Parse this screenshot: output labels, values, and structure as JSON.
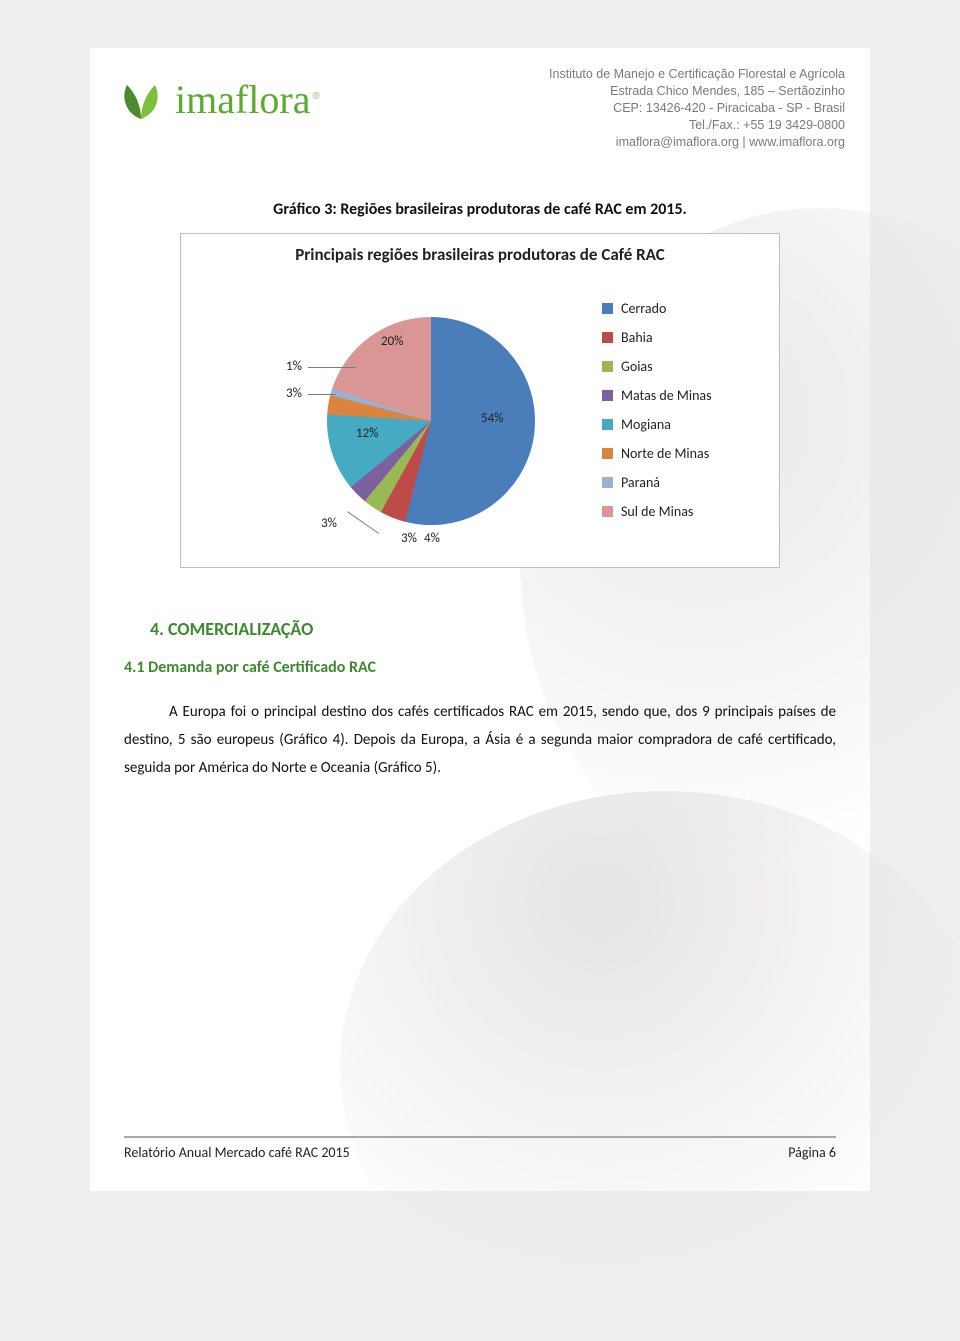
{
  "header": {
    "logo_text": "imaflora",
    "logo_reg": "®",
    "addr_line1": "Instituto de Manejo e Certificação Florestal e Agrícola",
    "addr_line2": "Estrada Chico Mendes, 185 – Sertãozinho",
    "addr_line3": "CEP: 13426-420 - Piracicaba - SP - Brasil",
    "addr_line4": "Tel./Fax.: +55 19 3429-0800",
    "addr_line5": "imaflora@imaflora.org  |  www.imaflora.org"
  },
  "caption": "Gráfico 3: Regiões brasileiras produtoras de café RAC em 2015.",
  "chart": {
    "type": "pie",
    "title": "Principais regiões brasileiras produtoras  de Café RAC",
    "background_color": "#ffffff",
    "border_color": "#bfbfbf",
    "slices": [
      {
        "label": "Cerrado",
        "value": 54,
        "color": "#4a7ebb",
        "pct_text": "54%"
      },
      {
        "label": "Bahia",
        "value": 4,
        "color": "#be4b48",
        "pct_text": "4%"
      },
      {
        "label": "Goias",
        "value": 3,
        "color": "#98b954",
        "pct_text": "3%"
      },
      {
        "label": "Matas de Minas",
        "value": 3,
        "color": "#7d60a0",
        "pct_text": "3%"
      },
      {
        "label": "Mogiana",
        "value": 12,
        "color": "#46aac5",
        "pct_text": "12%"
      },
      {
        "label": "Norte de Minas",
        "value": 3,
        "color": "#db843d",
        "pct_text": "3%"
      },
      {
        "label": "Paraná",
        "value": 1,
        "color": "#95b3d7",
        "pct_text": "1%"
      },
      {
        "label": "Sul de Minas",
        "value": 20,
        "color": "#d99694",
        "pct_text": "20%"
      }
    ],
    "label_fontsize": 13,
    "legend_fontsize": 14,
    "title_fontsize": 17
  },
  "section": {
    "number_title": "4.   COMERCIALIZAÇÃO",
    "subhead": "4.1 Demanda por café Certificado RAC",
    "paragraph": "A Europa foi o principal destino dos cafés certificados RAC em 2015, sendo que, dos 9 principais países de destino, 5 são europeus  (Gráfico 4). Depois da Europa, a Ásia é a segunda maior compradora de café certificado, seguida por América do Norte e Oceania (Gráfico 5)."
  },
  "footer": {
    "left": "Relatório Anual Mercado café RAC 2015",
    "right": "Página 6"
  }
}
